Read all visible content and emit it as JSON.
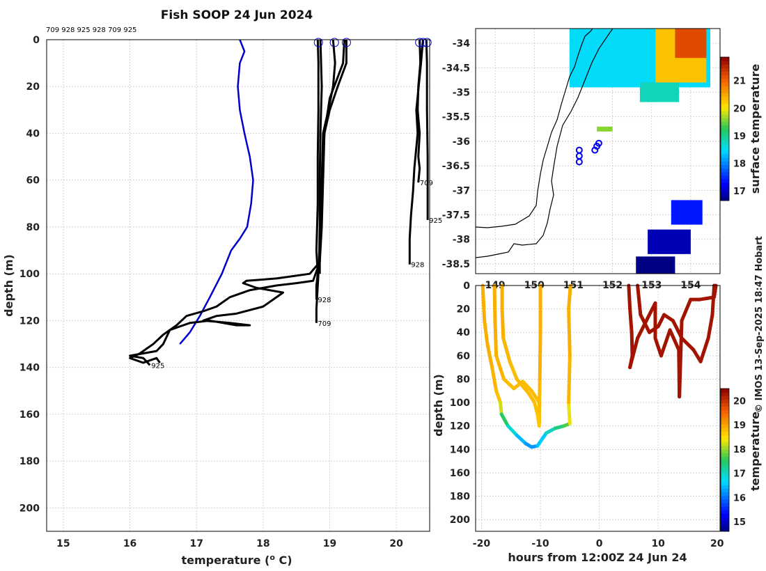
{
  "chart_data": [
    {
      "type": "line",
      "title": "Fish SOOP 24 Jun 2024",
      "xlabel": "temperature (",
      "xlabel_sup": "o",
      "xlabel_end": " C)",
      "ylabel": "depth (m)",
      "xlim": [
        14.75,
        20.5
      ],
      "ylim": [
        0,
        210
      ],
      "xticks": [
        15,
        16,
        17,
        18,
        19,
        20
      ],
      "yticks": [
        0,
        20,
        40,
        60,
        80,
        100,
        120,
        140,
        160,
        180,
        200
      ],
      "top_label": "709 928 925 928 709 925",
      "climatology": {
        "color": "#0000cc",
        "points": [
          [
            17.65,
            0
          ],
          [
            17.72,
            5
          ],
          [
            17.65,
            10
          ],
          [
            17.62,
            20
          ],
          [
            17.65,
            30
          ],
          [
            17.72,
            40
          ],
          [
            17.8,
            50
          ],
          [
            17.85,
            60
          ],
          [
            17.82,
            70
          ],
          [
            17.76,
            80
          ],
          [
            17.65,
            85
          ],
          [
            17.52,
            90
          ],
          [
            17.38,
            100
          ],
          [
            17.2,
            110
          ],
          [
            17.05,
            118
          ],
          [
            16.9,
            125
          ],
          [
            16.75,
            130
          ]
        ]
      },
      "profiles": [
        {
          "label": "928",
          "label_depth": 111,
          "color": "#000000",
          "points": [
            [
              18.82,
              0
            ],
            [
              18.83,
              10
            ],
            [
              18.83,
              30
            ],
            [
              18.82,
              50
            ],
            [
              18.82,
              70
            ],
            [
              18.8,
              90
            ],
            [
              18.82,
              100
            ],
            [
              18.8,
              105
            ],
            [
              18.8,
              111
            ]
          ]
        },
        {
          "label": "709",
          "label_depth": 121,
          "color": "#000000",
          "points": [
            [
              18.86,
              0
            ],
            [
              18.88,
              20
            ],
            [
              18.86,
              40
            ],
            [
              18.85,
              60
            ],
            [
              18.85,
              80
            ],
            [
              18.84,
              95
            ],
            [
              18.82,
              105
            ],
            [
              18.8,
              115
            ],
            [
              18.8,
              121
            ]
          ]
        },
        {
          "label": "",
          "label_depth": 0,
          "color": "#000000",
          "points": [
            [
              19.05,
              0
            ],
            [
              19.08,
              10
            ],
            [
              19.05,
              20
            ],
            [
              18.98,
              30
            ],
            [
              18.9,
              40
            ],
            [
              18.88,
              60
            ],
            [
              18.86,
              80
            ],
            [
              18.85,
              90
            ],
            [
              18.85,
              100
            ]
          ]
        },
        {
          "label": "",
          "label_depth": 0,
          "color": "#000000",
          "points": [
            [
              19.25,
              0
            ],
            [
              19.25,
              10
            ],
            [
              19.12,
              20
            ],
            [
              19.0,
              30
            ],
            [
              18.92,
              40
            ],
            [
              18.9,
              60
            ],
            [
              18.88,
              80
            ],
            [
              18.85,
              95
            ],
            [
              18.75,
              103
            ],
            [
              18.5,
              104
            ],
            [
              18.2,
              105
            ],
            [
              17.8,
              107
            ],
            [
              17.5,
              110
            ],
            [
              17.3,
              114
            ],
            [
              17.1,
              116
            ],
            [
              16.85,
              118
            ],
            [
              16.7,
              122
            ],
            [
              16.5,
              126
            ],
            [
              16.35,
              130
            ],
            [
              16.15,
              134
            ],
            [
              16.0,
              136
            ],
            [
              16.2,
              138
            ],
            [
              16.4,
              136
            ],
            [
              16.45,
              138
            ]
          ]
        },
        {
          "label": "925",
          "label_depth": 139,
          "color": "#000000",
          "points": [
            [
              19.22,
              0
            ],
            [
              19.2,
              10
            ],
            [
              19.0,
              25
            ],
            [
              18.92,
              40
            ],
            [
              18.88,
              60
            ],
            [
              18.86,
              80
            ],
            [
              18.85,
              95
            ],
            [
              18.7,
              100
            ],
            [
              18.2,
              102
            ],
            [
              17.75,
              103
            ],
            [
              17.7,
              104
            ],
            [
              17.9,
              106
            ],
            [
              18.3,
              108
            ],
            [
              18.0,
              114
            ],
            [
              17.6,
              117
            ],
            [
              17.3,
              118
            ],
            [
              17.1,
              120
            ],
            [
              17.5,
              121
            ],
            [
              17.8,
              122
            ],
            [
              17.6,
              122
            ],
            [
              17.2,
              120
            ],
            [
              16.9,
              121
            ],
            [
              16.6,
              124
            ],
            [
              16.5,
              130
            ],
            [
              16.4,
              133
            ],
            [
              16.2,
              134
            ],
            [
              16.0,
              135
            ],
            [
              16.2,
              136
            ],
            [
              16.3,
              139
            ]
          ]
        },
        {
          "label": "709",
          "label_depth": 61,
          "color": "#000000",
          "points": [
            [
              20.35,
              0
            ],
            [
              20.36,
              10
            ],
            [
              20.33,
              20
            ],
            [
              20.32,
              30
            ],
            [
              20.35,
              40
            ],
            [
              20.33,
              50
            ],
            [
              20.35,
              55
            ],
            [
              20.33,
              61
            ]
          ]
        },
        {
          "label": "925",
          "label_depth": 77,
          "color": "#000000",
          "points": [
            [
              20.45,
              0
            ],
            [
              20.46,
              10
            ],
            [
              20.46,
              30
            ],
            [
              20.47,
              50
            ],
            [
              20.47,
              65
            ],
            [
              20.47,
              77
            ]
          ]
        },
        {
          "label": "928",
          "label_depth": 96,
          "color": "#000000",
          "points": [
            [
              20.4,
              0
            ],
            [
              20.37,
              10
            ],
            [
              20.3,
              30
            ],
            [
              20.32,
              40
            ],
            [
              20.27,
              55
            ],
            [
              20.25,
              65
            ],
            [
              20.22,
              75
            ],
            [
              20.2,
              85
            ],
            [
              20.2,
              96
            ]
          ]
        }
      ],
      "surface_markers": [
        18.83,
        19.07,
        19.25,
        20.35,
        20.4,
        20.46
      ]
    },
    {
      "type": "heatmap",
      "title": "",
      "xlabel": "",
      "ylabel": "",
      "xlim": [
        148.5,
        154.75
      ],
      "ylim": [
        -38.7,
        -33.7
      ],
      "xticks": [
        149,
        150,
        151,
        152,
        153,
        154
      ],
      "yticks": [
        -34,
        -34.5,
        -35,
        -35.5,
        -36,
        -36.5,
        -37,
        -37.5,
        -38,
        -38.5
      ],
      "colorbar_label": "surface temperature",
      "colorbar_ticks": [
        17,
        18,
        19,
        20,
        21
      ],
      "colorbar_range": [
        16.65,
        21.85
      ],
      "stations": [
        [
          151.15,
          -36.18
        ],
        [
          151.15,
          -36.3
        ],
        [
          151.15,
          -36.42
        ],
        [
          151.55,
          -36.18
        ],
        [
          151.6,
          -36.1
        ],
        [
          151.65,
          -36.04
        ]
      ],
      "patches": [
        {
          "lon": [
            150.9,
            154.5
          ],
          "lat": [
            -34.9,
            -33.7
          ],
          "temp": 18.5
        },
        {
          "lon": [
            153.1,
            154.4
          ],
          "lat": [
            -34.8,
            -33.7
          ],
          "temp": 20.3
        },
        {
          "lon": [
            153.6,
            154.4
          ],
          "lat": [
            -34.3,
            -33.7
          ],
          "temp": 21.2
        },
        {
          "lon": [
            152.7,
            153.7
          ],
          "lat": [
            -35.2,
            -34.8
          ],
          "temp": 18.8
        },
        {
          "lon": [
            151.6,
            152.0
          ],
          "lat": [
            -35.8,
            -35.7
          ],
          "temp": 19.6
        },
        {
          "lon": [
            153.5,
            154.3
          ],
          "lat": [
            -37.7,
            -37.2
          ],
          "temp": 17.4
        },
        {
          "lon": [
            152.9,
            154.0
          ],
          "lat": [
            -38.3,
            -37.8
          ],
          "temp": 16.9
        },
        {
          "lon": [
            152.6,
            153.6
          ],
          "lat": [
            -38.7,
            -38.35
          ],
          "temp": 16.6
        }
      ]
    },
    {
      "type": "scatter",
      "title": "",
      "xlabel": "hours from 12:00Z 24 Jun 24",
      "ylabel": "depth (m)",
      "xlim": [
        -21,
        20.5
      ],
      "ylim": [
        0,
        210
      ],
      "xticks": [
        -20,
        -10,
        0,
        10,
        20
      ],
      "yticks": [
        0,
        20,
        40,
        60,
        80,
        100,
        120,
        140,
        160,
        180,
        200
      ],
      "colorbar_label": "temperature",
      "colorbar_ticks": [
        15,
        16,
        17,
        18,
        19,
        20
      ],
      "colorbar_range": [
        14.6,
        20.5
      ],
      "tracks": [
        {
          "points": [
            [
              -19.8,
              0
            ],
            [
              -19.5,
              30
            ],
            [
              -19.0,
              50
            ],
            [
              -18.2,
              70
            ],
            [
              -17.5,
              90
            ],
            [
              -16.8,
              100
            ],
            [
              -16.6,
              110
            ],
            [
              -15.5,
              120
            ],
            [
              -14.0,
              128
            ],
            [
              -12.5,
              135
            ],
            [
              -11.5,
              138
            ],
            [
              -10.5,
              137
            ],
            [
              -9.0,
              126
            ],
            [
              -7.5,
              122
            ],
            [
              -6.0,
              120
            ],
            [
              -5.0,
              118
            ],
            [
              -5.2,
              100
            ],
            [
              -5.0,
              60
            ],
            [
              -5.2,
              20
            ],
            [
              -4.9,
              0
            ]
          ],
          "temps": [
            18.9,
            18.9,
            18.9,
            18.9,
            18.8,
            18.7,
            17.8,
            17.2,
            16.6,
            16.3,
            16.2,
            16.3,
            16.8,
            17.2,
            17.5,
            17.9,
            18.8,
            18.9,
            18.9,
            18.9
          ]
        },
        {
          "points": [
            [
              -17.8,
              0
            ],
            [
              -17.7,
              30
            ],
            [
              -17.5,
              60
            ],
            [
              -16.2,
              80
            ],
            [
              -14.5,
              88
            ],
            [
              -13.0,
              82
            ],
            [
              -11.5,
              90
            ],
            [
              -10.2,
              100
            ],
            [
              -10.2,
              118
            ],
            [
              -10.1,
              80
            ],
            [
              -10.0,
              40
            ],
            [
              -10.0,
              0
            ]
          ],
          "temps": [
            18.9,
            18.9,
            18.9,
            18.8,
            18.8,
            18.8,
            18.8,
            18.8,
            18.7,
            18.9,
            18.9,
            18.9
          ]
        },
        {
          "points": [
            [
              -16.5,
              0
            ],
            [
              -16.5,
              20
            ],
            [
              -16.3,
              45
            ],
            [
              -15.2,
              65
            ],
            [
              -14.0,
              80
            ],
            [
              -12.0,
              92
            ],
            [
              -11.0,
              100
            ],
            [
              -10.5,
              110
            ],
            [
              -10.2,
              120
            ]
          ],
          "temps": [
            18.9,
            18.9,
            18.9,
            18.8,
            18.8,
            18.8,
            18.8,
            18.7,
            18.7
          ]
        },
        {
          "points": [
            [
              5.0,
              0
            ],
            [
              5.2,
              20
            ],
            [
              5.5,
              40
            ],
            [
              5.6,
              60
            ],
            [
              5.2,
              70
            ],
            [
              6.5,
              45
            ],
            [
              8.0,
              30
            ],
            [
              9.5,
              15
            ],
            [
              9.5,
              45
            ],
            [
              10.5,
              60
            ],
            [
              12.0,
              38
            ],
            [
              13.5,
              55
            ],
            [
              13.6,
              95
            ],
            [
              14.0,
              30
            ],
            [
              15.5,
              12
            ],
            [
              17.0,
              12
            ],
            [
              19.5,
              10
            ],
            [
              19.8,
              0
            ]
          ],
          "temps": [
            20.3,
            20.3,
            20.3,
            20.3,
            20.3,
            20.3,
            20.3,
            20.3,
            20.3,
            20.3,
            20.3,
            20.3,
            20.3,
            20.3,
            20.3,
            20.3,
            20.3,
            20.3
          ]
        },
        {
          "points": [
            [
              6.5,
              0
            ],
            [
              7.0,
              25
            ],
            [
              8.5,
              40
            ],
            [
              10.0,
              35
            ],
            [
              11.0,
              25
            ],
            [
              12.5,
              30
            ],
            [
              14.0,
              45
            ],
            [
              16.0,
              55
            ],
            [
              17.2,
              65
            ],
            [
              18.5,
              45
            ],
            [
              19.2,
              25
            ],
            [
              19.5,
              0
            ]
          ],
          "temps": [
            20.3,
            20.3,
            20.3,
            20.3,
            20.3,
            20.3,
            20.3,
            20.3,
            20.3,
            20.3,
            20.3,
            20.3
          ]
        }
      ]
    }
  ],
  "credit": "© IMOS 13-Sep-2025 18:47 Hobart"
}
